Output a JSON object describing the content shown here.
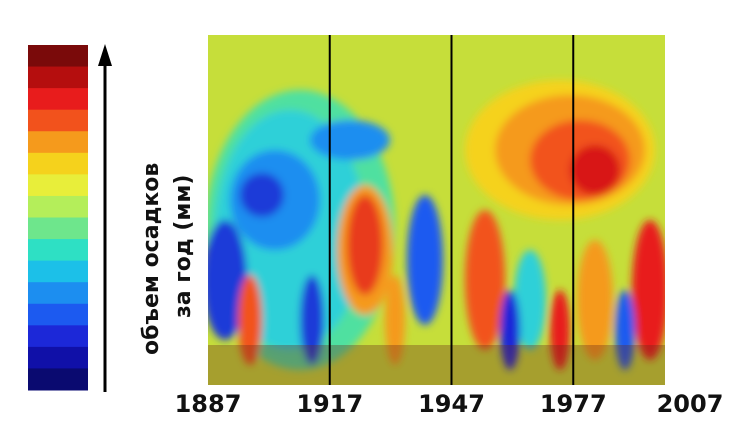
{
  "chart_data": {
    "type": "heatmap",
    "y_label_lines": [
      "объем осадков",
      "за год (мм)"
    ],
    "xlim": [
      1887,
      2007
    ],
    "xticks": [
      1887,
      1917,
      1947,
      1977,
      2007
    ],
    "grid": true,
    "colormap": [
      "#7a0a0a",
      "#b50e0e",
      "#e81c1c",
      "#f2521c",
      "#f59a1c",
      "#f5d21c",
      "#e8ee3a",
      "#b4ee5a",
      "#6ee68c",
      "#2ee0c4",
      "#1cc0e8",
      "#1c8ef0",
      "#1c5af0",
      "#1c28d8",
      "#1010a8",
      "#0a0a70"
    ]
  }
}
